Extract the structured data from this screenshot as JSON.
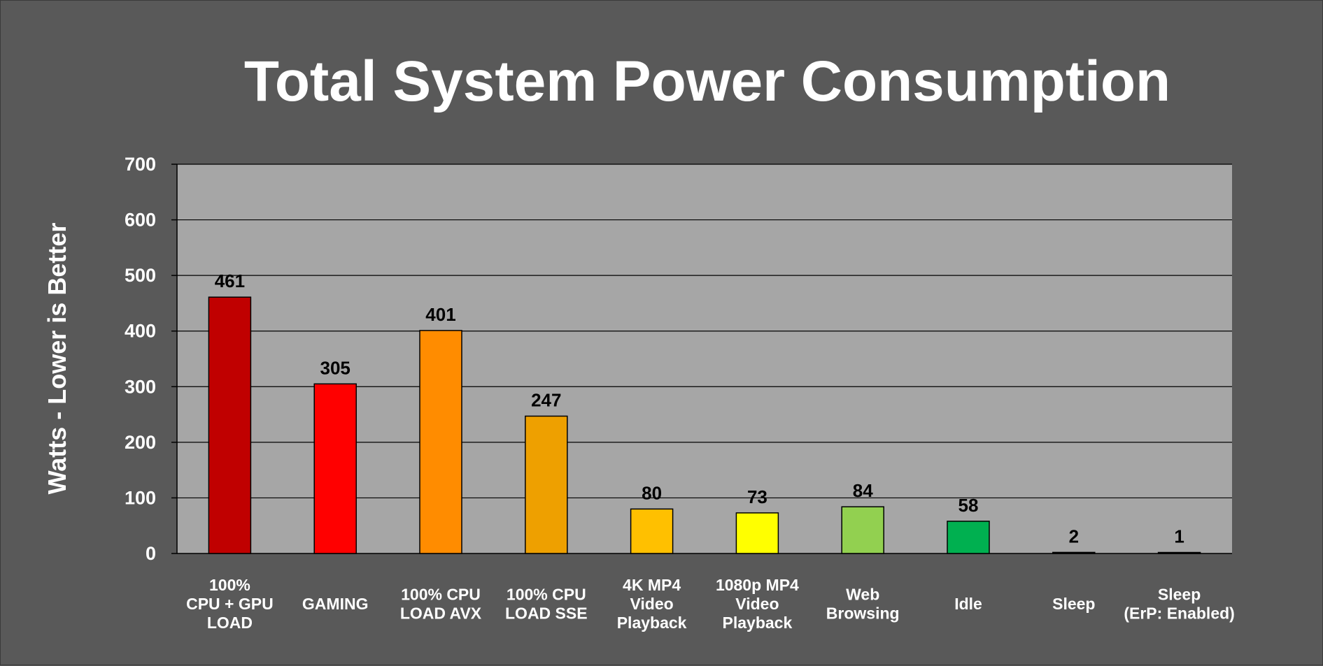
{
  "chart_data": {
    "type": "bar",
    "title": "Total System Power Consumption",
    "ylabel": "Watts - Lower is Better",
    "xlabel": "",
    "ylim": [
      0,
      700
    ],
    "yticks": [
      0,
      100,
      200,
      300,
      400,
      500,
      600,
      700
    ],
    "grid": true,
    "legend": "none",
    "categories": [
      [
        "100%",
        "CPU + GPU",
        "LOAD"
      ],
      [
        "GAMING"
      ],
      [
        "100% CPU",
        "LOAD AVX"
      ],
      [
        "100% CPU",
        "LOAD SSE"
      ],
      [
        "4K MP4",
        "Video",
        "Playback"
      ],
      [
        "1080p MP4",
        "Video",
        "Playback"
      ],
      [
        "Web",
        "Browsing"
      ],
      [
        "Idle"
      ],
      [
        "Sleep"
      ],
      [
        "Sleep",
        "(ErP: Enabled)"
      ]
    ],
    "values": [
      461,
      305,
      401,
      247,
      80,
      73,
      84,
      58,
      2,
      1
    ],
    "colors": [
      "#c00000",
      "#ff0000",
      "#ff8c00",
      "#eea000",
      "#ffc000",
      "#ffff00",
      "#92d050",
      "#00b050",
      "#1a1a1a",
      "#1a1a1a"
    ],
    "plot_background": "#a6a6a6",
    "page_background": "#595959"
  }
}
